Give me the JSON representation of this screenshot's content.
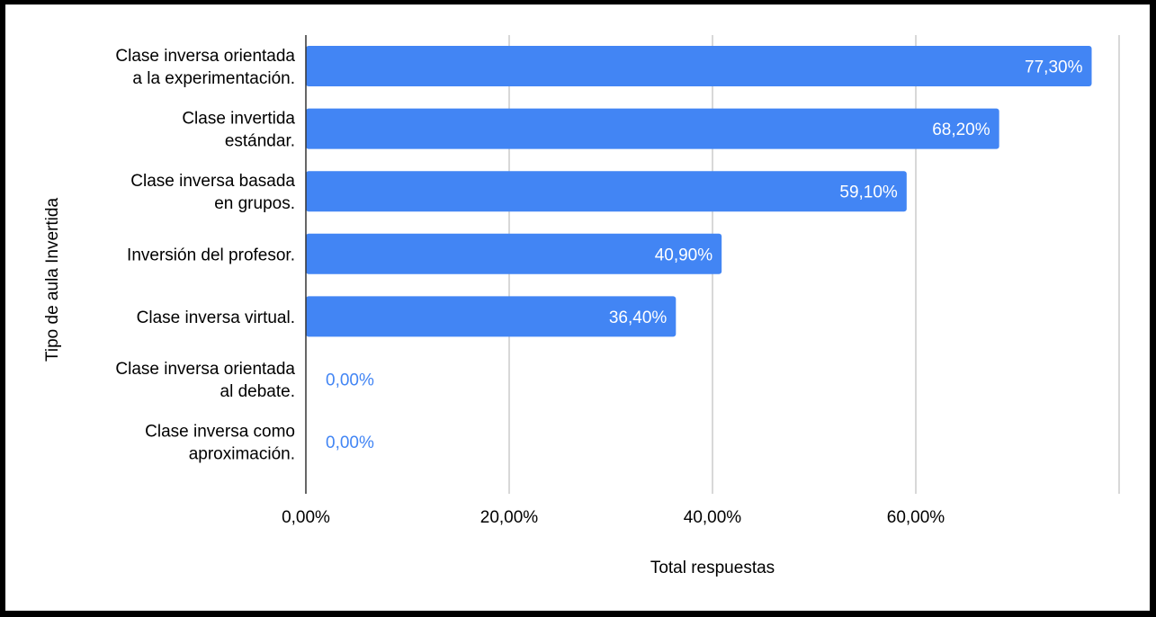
{
  "chart_data": {
    "type": "bar",
    "orientation": "horizontal",
    "categories": [
      [
        "Clase inversa orientada",
        "a la experimentación."
      ],
      [
        "Clase invertida",
        "estándar."
      ],
      [
        "Clase inversa basada",
        "en grupos."
      ],
      [
        "Inversión del profesor."
      ],
      [
        "Clase inversa virtual."
      ],
      [
        "Clase inversa orientada",
        "al debate."
      ],
      [
        "Clase inversa como",
        "aproximación."
      ]
    ],
    "values": [
      77.3,
      68.2,
      59.1,
      40.9,
      36.4,
      0.0,
      0.0
    ],
    "value_labels": [
      "77,30%",
      "68,20%",
      "59,10%",
      "40,90%",
      "36,40%",
      "0,00%",
      "0,00%"
    ],
    "xlabel": "Total respuestas",
    "ylabel": "Tipo de aula Invertida",
    "xlim": [
      0,
      80
    ],
    "x_ticks": [
      0,
      20,
      40,
      60,
      80
    ],
    "x_tick_labels": [
      "0,00%",
      "20,00%",
      "40,00%",
      "60,00%",
      ""
    ],
    "grid": true,
    "colors": {
      "bar": "#4285f4",
      "label_inside": "#ffffff",
      "label_outside": "#4285f4",
      "gridline": "#cccccc",
      "axis": "#333333"
    }
  }
}
